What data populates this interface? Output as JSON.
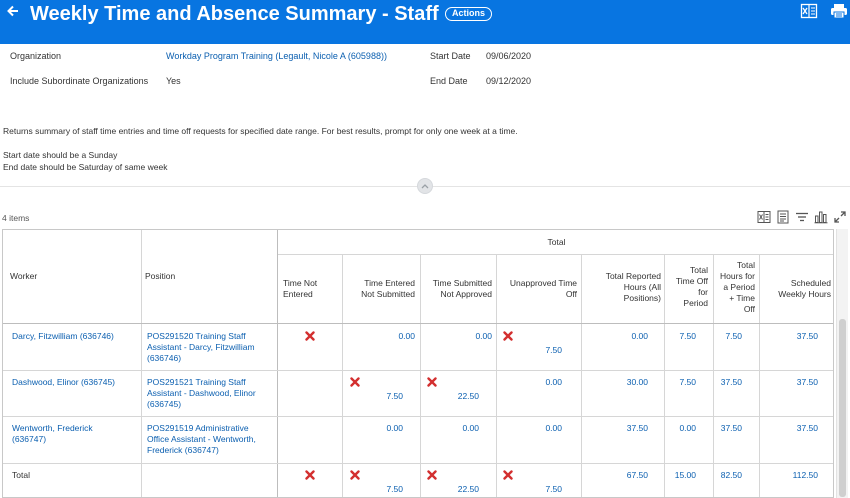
{
  "header": {
    "title": "Weekly Time and Absence Summary - Staff",
    "actions_label": "Actions",
    "brand_color": "#0875e1"
  },
  "prompts": {
    "organization_label": "Organization",
    "organization_value": "Workday Program Training (Legault, Nicole A (605988))",
    "subordinate_label": "Include Subordinate Organizations",
    "subordinate_value": "Yes",
    "start_label": "Start Date",
    "start_value": "09/06/2020",
    "end_label": "End Date",
    "end_value": "09/12/2020"
  },
  "description": {
    "line1": "Returns summary of staff time entries and time off requests for specified date range.  For best results, prompt for only one week at a time.",
    "line2": "Start date should be a Sunday",
    "line3": "End date should be Saturday of same week"
  },
  "table": {
    "item_count": "4 items",
    "group_header": "Total",
    "columns": {
      "worker": "Worker",
      "position": "Position",
      "not_entered": [
        "Time Not",
        "Entered"
      ],
      "entered_not_submitted": [
        "Time Entered",
        "Not Submitted"
      ],
      "submitted_not_approved": [
        "Time Submitted",
        "Not Approved"
      ],
      "unapproved_time_off": [
        "Unapproved Time",
        "Off"
      ],
      "total_reported": [
        "Total Reported",
        "Hours (All",
        "Positions)"
      ],
      "total_time_off": [
        "Total",
        "Time Off",
        "for",
        "Period"
      ],
      "total_hours": [
        "Total",
        "Hours for",
        "a Period",
        "+ Time",
        "Off"
      ],
      "scheduled": [
        "Scheduled",
        "Weekly Hours"
      ]
    },
    "rows": [
      {
        "worker": [
          "Darcy, Fitzwilliam (636746)"
        ],
        "position": [
          "POS291520 Training Staff",
          "Assistant - Darcy, Fitzwilliam",
          "(636746)"
        ],
        "not_entered": "",
        "entered_not_submitted": "0.00",
        "submitted_not_approved": "0.00",
        "unapproved_time_off": "7.50",
        "total_reported": "0.00",
        "total_time_off": "7.50",
        "total_hours": "7.50",
        "scheduled": "37.50",
        "flags": {
          "not_entered": true,
          "entered_not_submitted": false,
          "submitted_not_approved": false,
          "unapproved_time_off": true
        }
      },
      {
        "worker": [
          "Dashwood, Elinor (636745)"
        ],
        "position": [
          "POS291521 Training Staff",
          "Assistant - Dashwood, Elinor",
          "(636745)"
        ],
        "not_entered": "",
        "entered_not_submitted": "7.50",
        "submitted_not_approved": "22.50",
        "unapproved_time_off": "0.00",
        "total_reported": "30.00",
        "total_time_off": "7.50",
        "total_hours": "37.50",
        "scheduled": "37.50",
        "flags": {
          "not_entered": false,
          "entered_not_submitted": true,
          "submitted_not_approved": true,
          "unapproved_time_off": false
        }
      },
      {
        "worker": [
          "Wentworth, Frederick",
          "(636747)"
        ],
        "position": [
          "POS291519 Administrative",
          "Office Assistant - Wentworth,",
          "Frederick (636747)"
        ],
        "not_entered": "",
        "entered_not_submitted": "0.00",
        "submitted_not_approved": "0.00",
        "unapproved_time_off": "0.00",
        "total_reported": "37.50",
        "total_time_off": "0.00",
        "total_hours": "37.50",
        "scheduled": "37.50",
        "flags": {
          "not_entered": false,
          "entered_not_submitted": false,
          "submitted_not_approved": false,
          "unapproved_time_off": false
        }
      }
    ],
    "total_row": {
      "label": "Total",
      "not_entered": "",
      "entered_not_submitted": "7.50",
      "submitted_not_approved": "22.50",
      "unapproved_time_off": "7.50",
      "total_reported": "67.50",
      "total_time_off": "15.00",
      "total_hours": "82.50",
      "scheduled": "112.50",
      "flags": {
        "not_entered": true,
        "entered_not_submitted": true,
        "submitted_not_approved": true,
        "unapproved_time_off": true
      }
    },
    "x_color": "#d32f2f"
  },
  "icons": {
    "back": "back-arrow-icon",
    "excel_header": "excel-export-icon",
    "print": "print-icon",
    "excel_table": "table-excel-icon",
    "pdf": "table-pdf-icon",
    "filter": "filter-icon",
    "chart": "chart-icon",
    "fullscreen": "fullscreen-icon",
    "collapse": "chevron-up-icon"
  }
}
